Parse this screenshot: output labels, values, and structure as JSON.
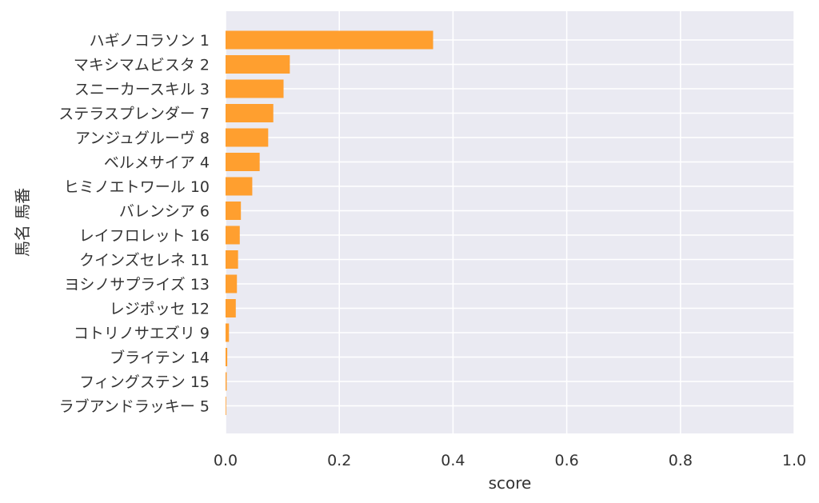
{
  "chart_data": {
    "type": "bar",
    "orientation": "horizontal",
    "xlabel": "score",
    "ylabel": "馬名 馬番",
    "xlim": [
      0,
      1.0
    ],
    "xticks": [
      "0.0",
      "0.2",
      "0.4",
      "0.6",
      "0.8",
      "1.0"
    ],
    "grid": true,
    "bar_color": "#ff9f2f",
    "background_color": "#eaeaf2",
    "categories": [
      "ハギノコラソン 1",
      "マキシマムビスタ 2",
      "スニーカースキル 3",
      "ステラスプレンダー 7",
      "アンジュグルーヴ 8",
      "ベルメサイア 4",
      "ヒミノエトワール 10",
      "バレンシア 6",
      "レイフロレット 16",
      "クインズセレネ 11",
      "ヨシノサプライズ 13",
      "レジポッセ 12",
      "コトリノサエズリ 9",
      "ブライテン 14",
      "フィングステン 15",
      "ラブアンドラッキー 5"
    ],
    "values": [
      0.365,
      0.113,
      0.102,
      0.084,
      0.075,
      0.06,
      0.047,
      0.027,
      0.025,
      0.022,
      0.02,
      0.018,
      0.006,
      0.003,
      0.002,
      0.001
    ]
  }
}
